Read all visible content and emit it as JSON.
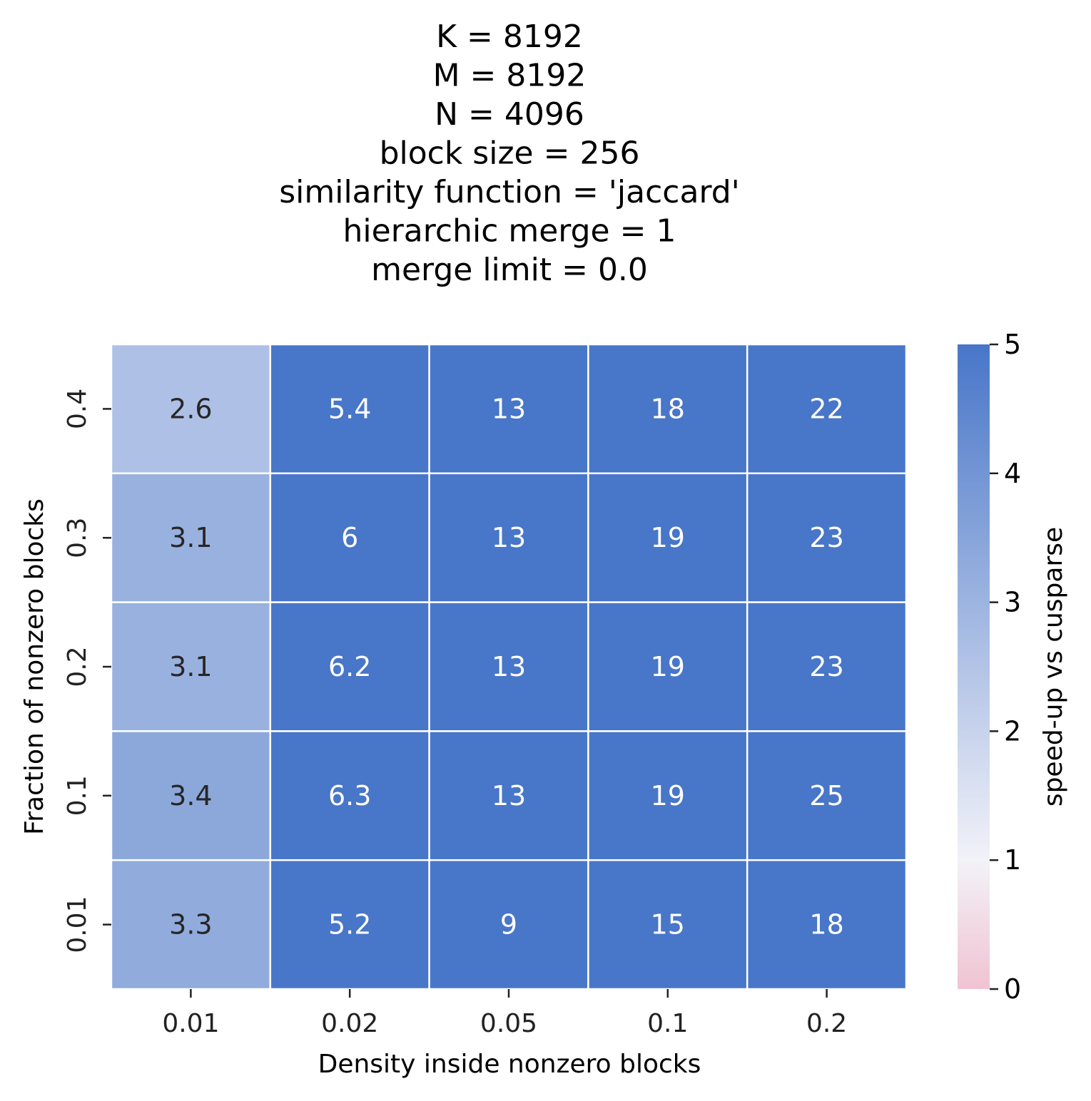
{
  "chart_data": {
    "type": "heatmap",
    "title_lines": [
      "K = 8192",
      "M = 8192",
      "N = 4096",
      "block size = 256",
      "similarity function = 'jaccard'",
      "hierarchic merge = 1",
      "merge limit = 0.0"
    ],
    "xlabel": "Density inside nonzero blocks",
    "ylabel": "Fraction of nonzero blocks",
    "x_categories": [
      "0.01",
      "0.02",
      "0.05",
      "0.1",
      "0.2"
    ],
    "y_categories": [
      "0.4",
      "0.3",
      "0.2",
      "0.1",
      "0.01"
    ],
    "values": [
      [
        2.6,
        5.4,
        13,
        18,
        22
      ],
      [
        3.1,
        6,
        13,
        19,
        23
      ],
      [
        3.1,
        6.2,
        13,
        19,
        23
      ],
      [
        3.4,
        6.3,
        13,
        19,
        25
      ],
      [
        3.3,
        5.2,
        9,
        15,
        18
      ]
    ],
    "colorbar": {
      "label": "speed-up vs cusparse",
      "range": [
        0,
        5
      ],
      "ticks": [
        "0",
        "1",
        "2",
        "3",
        "4",
        "5"
      ],
      "stops": [
        {
          "value": 0,
          "color": "#f0c3d1"
        },
        {
          "value": 1,
          "color": "#f2f2f8"
        },
        {
          "value": 5,
          "color": "#4876c8"
        }
      ]
    },
    "grid": false,
    "legend": "colorbar-right"
  }
}
